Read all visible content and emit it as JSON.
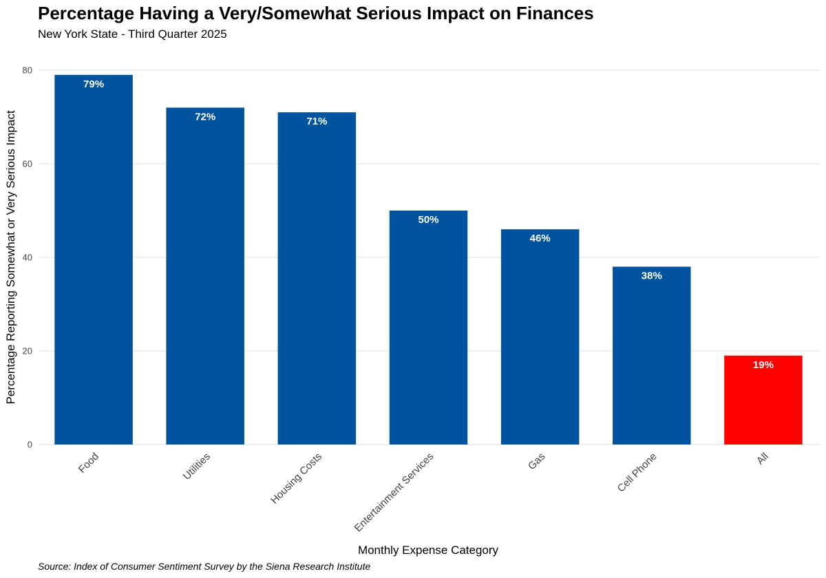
{
  "chart_data": {
    "type": "bar",
    "title": "Percentage Having a Very/Somewhat Serious Impact on Finances",
    "subtitle": "New York State - Third Quarter 2025",
    "caption": "Source: Index of Consumer Sentiment Survey by the Siena Research Institute",
    "xlabel": "Monthly Expense Category",
    "ylabel": "Percentage Reporting Somewhat or Very Serious Impact",
    "categories": [
      "Food",
      "Utilities",
      "Housing Costs",
      "Entertainment Services",
      "Gas",
      "Cell Phone",
      "All"
    ],
    "values": [
      79,
      72,
      71,
      50,
      46,
      38,
      19
    ],
    "labels": [
      "79%",
      "72%",
      "71%",
      "50%",
      "46%",
      "38%",
      "19%"
    ],
    "colors": [
      "#00539F",
      "#00539F",
      "#00539F",
      "#00539F",
      "#00539F",
      "#00539F",
      "#FF0000"
    ],
    "ylim": [
      0,
      80
    ],
    "yticks": [
      0,
      20,
      40,
      60,
      80
    ],
    "grid": true,
    "gridColor": "#e6e6e6"
  }
}
